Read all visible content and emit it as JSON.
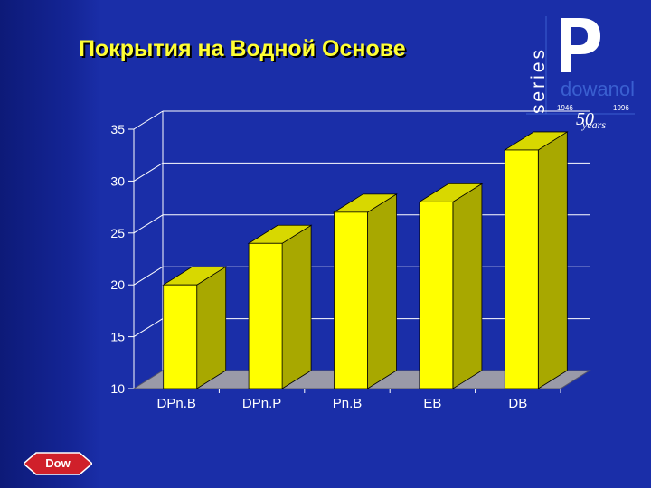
{
  "slide": {
    "title": "Покрытия на Водной Основе"
  },
  "brand": {
    "series_text": "series",
    "name": "dowanol",
    "year_start": "1946",
    "year_end": "1996",
    "anniversary_number": "50",
    "anniversary_word": "years",
    "company_logo_text": "Dow",
    "colors": {
      "brand_blue": "#3a5fd0",
      "logo_red": "#d0202a"
    }
  },
  "colors": {
    "background": "#1a2ea8",
    "title": "#ffff33",
    "bar_front": "#ffff00",
    "bar_side": "#a8a800",
    "bar_top": "#d8d800",
    "floor": "#9a9aa8",
    "axis_text": "#ffffff"
  },
  "chart_data": {
    "type": "bar",
    "title": "",
    "xlabel": "",
    "ylabel": "",
    "categories": [
      "DPn.B",
      "DPn.P",
      "Pn.B",
      "EB",
      "DB"
    ],
    "values": [
      20,
      24,
      27,
      28,
      33
    ],
    "ylim": [
      10,
      35
    ],
    "yticks": [
      10,
      15,
      20,
      25,
      30,
      35
    ],
    "grid": true,
    "legend": "none",
    "style": "3d"
  }
}
